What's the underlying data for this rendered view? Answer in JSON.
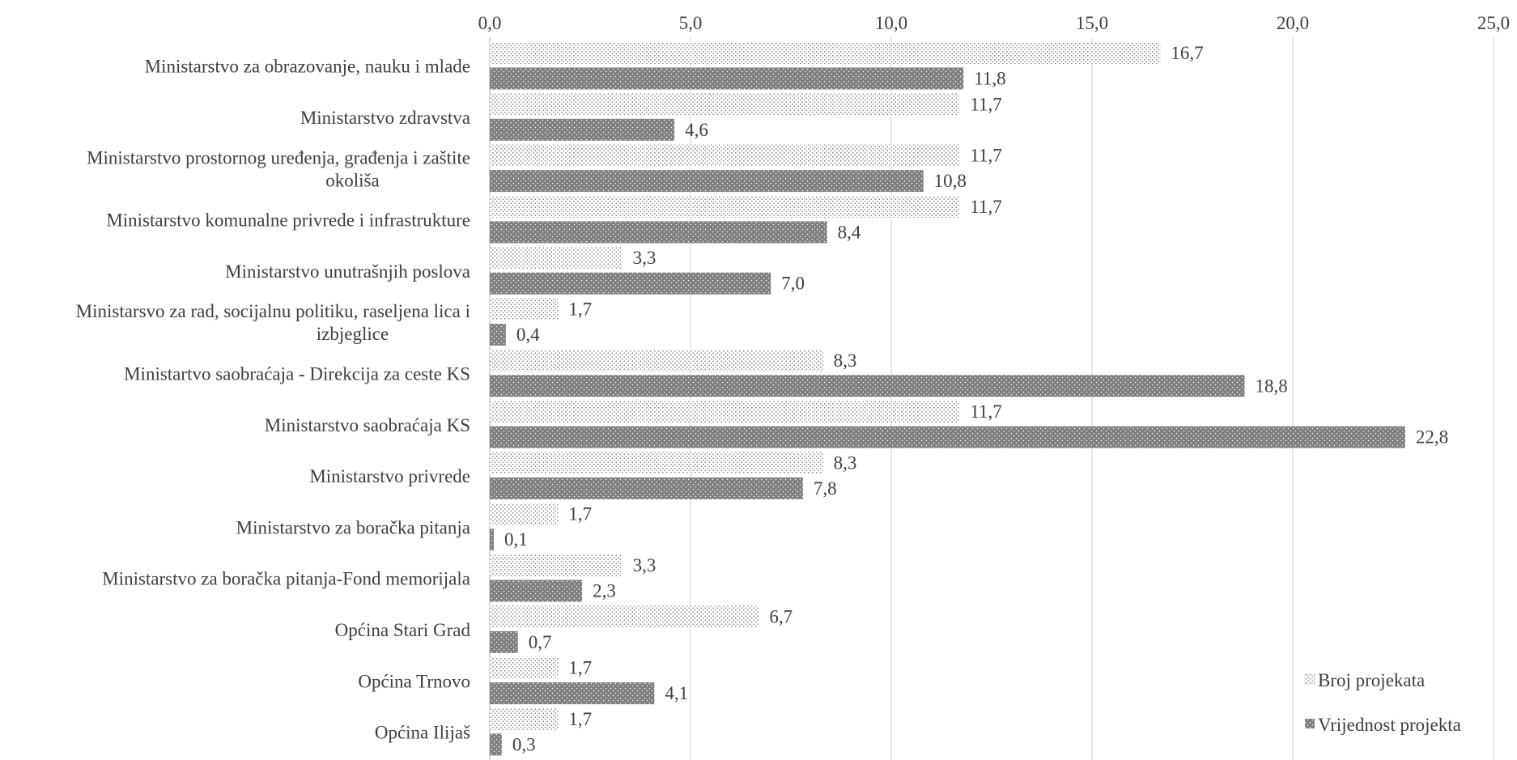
{
  "chart_data": {
    "type": "bar",
    "orientation": "horizontal",
    "xlim": [
      0,
      25
    ],
    "xticks": [
      "0,0",
      "5,0",
      "10,0",
      "15,0",
      "20,0",
      "25,0"
    ],
    "grid": true,
    "legend_position": "bottom-right",
    "categories": [
      [
        "Ministarstvo za obrazovanje, nauku i mlade"
      ],
      [
        "Ministarstvo zdravstva"
      ],
      [
        "Ministarstvo prostornog uređenja, građenja i zaštite",
        "okoliša"
      ],
      [
        "Ministarstvo komunalne privrede i infrastrukture"
      ],
      [
        "Ministarstvo unutrašnjih poslova"
      ],
      [
        "Ministarsvo za rad, socijalnu politiku, raseljena lica i",
        "izbjeglice"
      ],
      [
        "Ministartvo saobraćaja - Direkcija za ceste KS"
      ],
      [
        "Ministarstvo saobraćaja KS"
      ],
      [
        "Ministarstvo privrede"
      ],
      [
        "Ministarstvo za boračka pitanja"
      ],
      [
        "Ministarstvo za boračka pitanja-Fond memorijala"
      ],
      [
        "Općina Stari Grad"
      ],
      [
        "Općina Trnovo"
      ],
      [
        "Općina Ilijaš"
      ]
    ],
    "series": [
      {
        "name": "Broj projekata",
        "pattern": "light-dots",
        "values": [
          16.7,
          11.7,
          11.7,
          11.7,
          3.3,
          1.7,
          8.3,
          11.7,
          8.3,
          1.7,
          3.3,
          6.7,
          1.7,
          1.7
        ],
        "labels": [
          "16,7",
          "11,7",
          "11,7",
          "11,7",
          "3,3",
          "1,7",
          "8,3",
          "11,7",
          "8,3",
          "1,7",
          "3,3",
          "6,7",
          "1,7",
          "1,7"
        ]
      },
      {
        "name": "Vrijednost projekta",
        "pattern": "dark-dots",
        "values": [
          11.8,
          4.6,
          10.8,
          8.4,
          7.0,
          0.4,
          18.8,
          22.8,
          7.8,
          0.1,
          2.3,
          0.7,
          4.1,
          0.3
        ],
        "labels": [
          "11,8",
          "4,6",
          "10,8",
          "8,4",
          "7,0",
          "0,4",
          "18,8",
          "22,8",
          "7,8",
          "0,1",
          "2,3",
          "0,7",
          "4,1",
          "0,3"
        ]
      }
    ],
    "colors": {
      "dark_bar": "#7f7f7f",
      "light_dot": "#8c8c8c",
      "text": "#404040",
      "grid": "#d9d9d9"
    }
  }
}
